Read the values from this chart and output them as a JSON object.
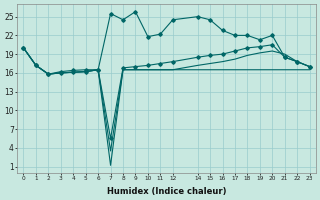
{
  "xlabel": "Humidex (Indice chaleur)",
  "background_color": "#c8e8e0",
  "grid_color": "#99cccc",
  "line_color": "#006666",
  "ylim": [
    0,
    27
  ],
  "y_ticks": [
    1,
    4,
    7,
    10,
    13,
    16,
    19,
    22,
    25
  ],
  "xlim": [
    -0.5,
    23.5
  ],
  "x_positions": [
    0,
    1,
    2,
    3,
    4,
    5,
    6,
    7,
    8,
    9,
    10,
    11,
    12,
    14,
    15,
    16,
    17,
    18,
    19,
    20,
    21,
    22,
    23
  ],
  "x_tick_labels": [
    "0",
    "1",
    "2",
    "3",
    "4",
    "5",
    "6",
    "7",
    "8",
    "9",
    "10",
    "11",
    "12",
    "14",
    "15",
    "16",
    "17",
    "18",
    "19",
    "20",
    "21",
    "22",
    "23"
  ],
  "series1_x": [
    0,
    1,
    2,
    3,
    4,
    5,
    6,
    7,
    8,
    9,
    10,
    11,
    12,
    14,
    15,
    16,
    17,
    18,
    19,
    20,
    21,
    22,
    23
  ],
  "series1_y": [
    20.0,
    17.2,
    15.8,
    16.2,
    16.4,
    16.5,
    16.5,
    25.5,
    24.5,
    25.8,
    21.8,
    22.2,
    24.5,
    25.0,
    24.5,
    22.8,
    22.0,
    22.0,
    21.3,
    22.0,
    18.5,
    17.8,
    17.0
  ],
  "series2_x": [
    0,
    1,
    2,
    3,
    4,
    5,
    6,
    7,
    8,
    9,
    10,
    11,
    12,
    14,
    15,
    16,
    17,
    18,
    19,
    20,
    21,
    22,
    23
  ],
  "series2_y": [
    20.0,
    17.2,
    15.8,
    16.0,
    16.1,
    16.2,
    16.5,
    5.5,
    16.8,
    17.0,
    17.2,
    17.5,
    17.8,
    18.5,
    18.8,
    19.0,
    19.5,
    20.0,
    20.2,
    20.5,
    18.5,
    17.8,
    17.0
  ],
  "series3_x": [
    0,
    1,
    2,
    3,
    4,
    5,
    6,
    7,
    8,
    9,
    10,
    11,
    12,
    14,
    15,
    16,
    17,
    18,
    19,
    20,
    21,
    22,
    23
  ],
  "series3_y": [
    20.0,
    17.2,
    15.8,
    16.0,
    16.1,
    16.2,
    16.5,
    1.2,
    16.5,
    16.5,
    16.5,
    16.5,
    16.5,
    16.5,
    16.5,
    16.5,
    16.5,
    16.5,
    16.5,
    16.5,
    16.5,
    16.5,
    16.5
  ],
  "series4_x": [
    0,
    1,
    2,
    3,
    4,
    5,
    6,
    7,
    8,
    9,
    10,
    11,
    12,
    14,
    15,
    16,
    17,
    18,
    19,
    20,
    21,
    22,
    23
  ],
  "series4_y": [
    20.0,
    17.2,
    15.8,
    16.0,
    16.1,
    16.2,
    16.5,
    3.5,
    16.5,
    16.5,
    16.5,
    16.5,
    16.5,
    17.2,
    17.5,
    17.8,
    18.2,
    18.8,
    19.2,
    19.5,
    19.0,
    17.8,
    17.0
  ]
}
